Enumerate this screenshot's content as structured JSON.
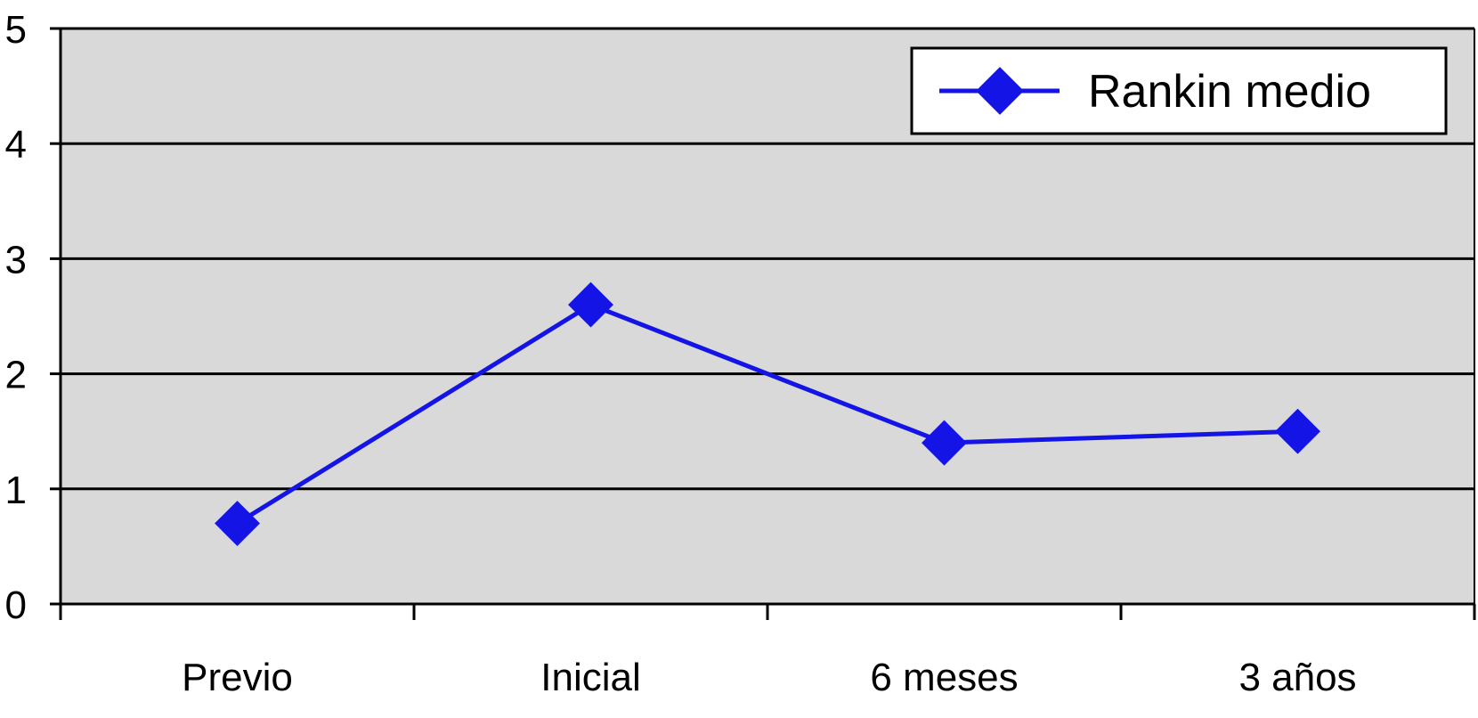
{
  "chart_data": {
    "type": "line",
    "categories": [
      "Previo",
      "Inicial",
      "6 meses",
      "3 años"
    ],
    "series": [
      {
        "name": "Rankin medio",
        "values": [
          0.7,
          2.6,
          1.4,
          1.5
        ],
        "color": "#1414e6"
      }
    ],
    "ylim": [
      0,
      5
    ],
    "yticks": [
      "0",
      "1",
      "2",
      "3",
      "4",
      "5"
    ],
    "grid": true,
    "legend_position": "top-right",
    "plot_background": "#d9d9d9",
    "marker": "diamond"
  }
}
